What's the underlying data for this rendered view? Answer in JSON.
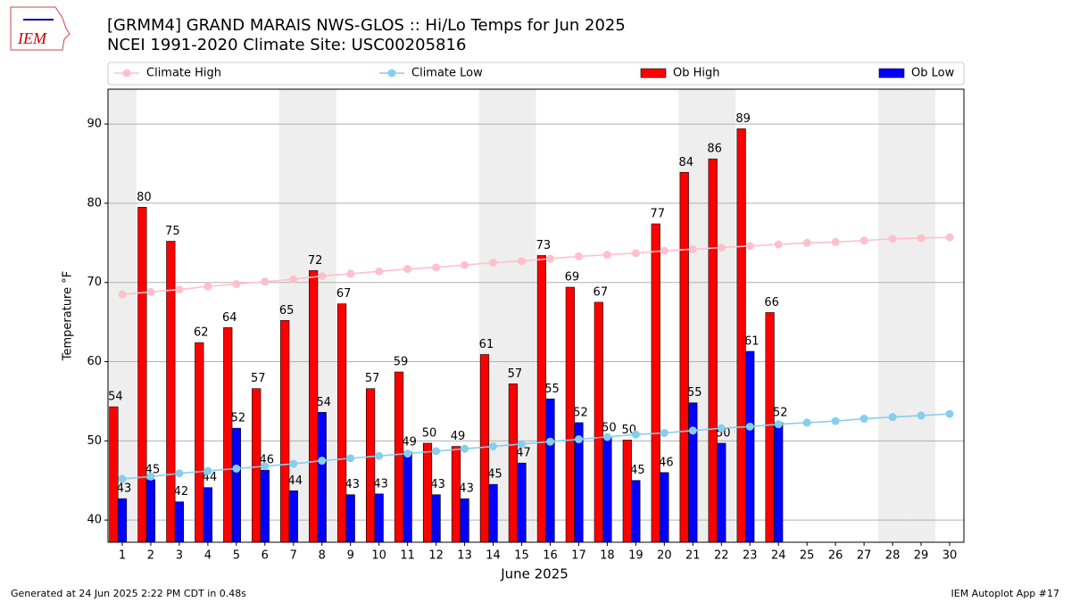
{
  "chart_data": {
    "type": "bar_line",
    "title": "[GRMM4] GRAND MARAIS NWS-GLOS :: Hi/Lo Temps for Jun 2025",
    "subtitle": "NCEI 1991-2020 Climate Site: USC00205816",
    "logo_text": "IEM",
    "xlabel": "June 2025",
    "ylabel": "Temperature °F",
    "footer_left": "Generated at 24 Jun 2025 2:22 PM CDT in 0.48s",
    "footer_right": "IEM Autoplot App #17",
    "x": [
      1,
      2,
      3,
      4,
      5,
      6,
      7,
      8,
      9,
      10,
      11,
      12,
      13,
      14,
      15,
      16,
      17,
      18,
      19,
      20,
      21,
      22,
      23,
      24,
      25,
      26,
      27,
      28,
      29,
      30
    ],
    "xlim": [
      0.5,
      30.5
    ],
    "xticks": [
      1,
      2,
      3,
      4,
      5,
      6,
      7,
      8,
      9,
      10,
      11,
      12,
      13,
      14,
      15,
      16,
      17,
      18,
      19,
      20,
      21,
      22,
      23,
      24,
      25,
      26,
      27,
      28,
      29,
      30
    ],
    "ylim": [
      37.2,
      94.4
    ],
    "yticks": [
      40,
      50,
      60,
      70,
      80,
      90
    ],
    "grid": true,
    "weekend_days": [
      1,
      7,
      8,
      14,
      15,
      21,
      22,
      28,
      29
    ],
    "series": [
      {
        "name": "Climate High",
        "kind": "line",
        "color": "#ffc0cb",
        "values": [
          68.5,
          68.8,
          69.1,
          69.5,
          69.8,
          70.1,
          70.4,
          70.8,
          71.1,
          71.4,
          71.7,
          71.9,
          72.2,
          72.5,
          72.7,
          73.0,
          73.3,
          73.5,
          73.7,
          74.0,
          74.2,
          74.4,
          74.6,
          74.8,
          75.0,
          75.1,
          75.3,
          75.5,
          75.6,
          75.7
        ]
      },
      {
        "name": "Climate Low",
        "kind": "line",
        "color": "#87ceeb",
        "values": [
          45.2,
          45.5,
          45.9,
          46.2,
          46.5,
          46.8,
          47.1,
          47.5,
          47.8,
          48.1,
          48.4,
          48.7,
          49.0,
          49.3,
          49.6,
          49.9,
          50.2,
          50.5,
          50.8,
          51.0,
          51.3,
          51.6,
          51.8,
          52.1,
          52.3,
          52.5,
          52.8,
          53.0,
          53.2,
          53.4
        ]
      },
      {
        "name": "Ob High",
        "kind": "bar",
        "color": "#ff0000",
        "values": [
          54.3,
          79.5,
          75.2,
          62.4,
          64.3,
          56.6,
          65.2,
          71.5,
          67.3,
          56.6,
          58.7,
          49.7,
          49.3,
          60.9,
          57.2,
          73.4,
          69.4,
          67.5,
          50.1,
          77.4,
          83.9,
          85.6,
          89.4,
          66.2,
          null,
          null,
          null,
          null,
          null,
          null
        ],
        "value_labels": [
          "54",
          "80",
          "75",
          "62",
          "64",
          "57",
          "65",
          "72",
          "67",
          "57",
          "59",
          "50",
          "49",
          "61",
          "57",
          "73",
          "69",
          "67",
          "50",
          "77",
          "84",
          "86",
          "89",
          "66",
          null,
          null,
          null,
          null,
          null,
          null
        ]
      },
      {
        "name": "Ob Low",
        "kind": "bar",
        "color": "#0000ff",
        "values": [
          42.7,
          45.1,
          42.3,
          44.1,
          51.6,
          46.3,
          43.7,
          53.6,
          43.2,
          43.3,
          48.6,
          43.2,
          42.7,
          44.5,
          47.2,
          55.3,
          52.3,
          50.4,
          45.0,
          46.0,
          54.8,
          49.7,
          61.3,
          52.3,
          null,
          null,
          null,
          null,
          null,
          null
        ],
        "value_labels": [
          "43",
          "45",
          "42",
          "44",
          "52",
          "46",
          "44",
          "54",
          "43",
          "43",
          "49",
          "43",
          "43",
          "45",
          "47",
          "55",
          "52",
          "50",
          "45",
          "46",
          "55",
          "50",
          "61",
          "52",
          null,
          null,
          null,
          null,
          null,
          null
        ]
      }
    ]
  }
}
